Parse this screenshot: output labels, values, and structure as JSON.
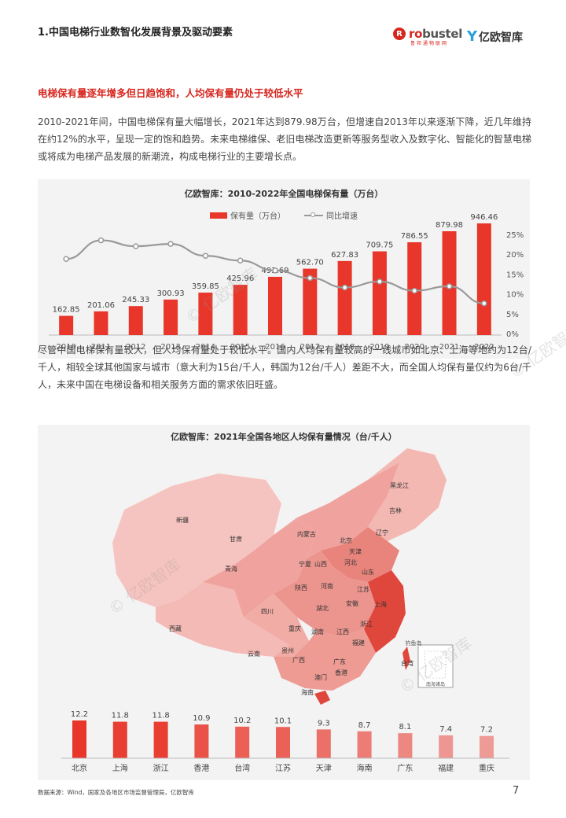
{
  "header": {
    "title": "1.中国电梯行业数智化发展背景及驱动要素",
    "robustel_mark": "R",
    "robustel_pre": "ro",
    "robustel_rest": "bustel",
    "robustel_sub": "鲁邦通物联网",
    "yiou_mark": "Y",
    "yiou_name": "亿欧智库"
  },
  "section_heading": "电梯保有量逐年增多但日趋饱和，人均保有量仍处于较低水平",
  "paragraph1": "2010-2021年间，中国电梯保有量大幅增长，2021年达到879.98万台，但增速自2013年以来逐渐下降，近几年维持在约12%的水平，呈现一定的饱和趋势。未来电梯维保、老旧电梯改造更新等服务型收入及数字化、智能化的智慧电梯或将成为电梯产品发展的新潮流，构成电梯行业的主要增长点。",
  "paragraph2": "尽管中国电梯保有量较大，但人均保有量处于较低水平。国内人均保有量较高的一线城市如北京、上海等地约为12台/千人，相较全球其他国家与城市（意大利为15台/千人，韩国为12台/千人）差距不大，而全国人均保有量仅约为6台/千人，未来中国在电梯设备和相关服务方面的需求依旧旺盛。",
  "watermark": "© 亿欧智库",
  "colors": {
    "accent": "#d7261e",
    "bar": "#e8362a",
    "line": "#999999"
  },
  "chart_data": [
    {
      "type": "bar",
      "title": "亿欧智库：2010-2022年全国电梯保有量（万台）",
      "categories": [
        "2010",
        "2011",
        "2012",
        "2013",
        "2014",
        "2015",
        "2016",
        "2017",
        "2018",
        "2019",
        "2020",
        "2021",
        "2022"
      ],
      "series": [
        {
          "name": "保有量（万台）",
          "type": "bar",
          "values": [
            162.85,
            201.06,
            245.33,
            300.93,
            359.85,
            425.96,
            493.69,
            562.7,
            627.83,
            709.75,
            786.55,
            879.98,
            946.46
          ]
        },
        {
          "name": "同比增速",
          "type": "line",
          "axis": "right",
          "values": [
            18.8,
            23.5,
            22.0,
            22.6,
            19.6,
            18.4,
            15.9,
            14.0,
            11.6,
            13.1,
            10.8,
            11.9,
            7.6
          ]
        }
      ],
      "right_axis_ticks": [
        "25%",
        "20%",
        "15%",
        "10%",
        "5%",
        "0%"
      ],
      "right_ylim": [
        0,
        25
      ],
      "legend": "top",
      "value_labels": [
        "162.85",
        "201.06",
        "245.33",
        "300.93",
        "359.85",
        "425.96",
        "493.69",
        "562.70",
        "627.83",
        "709.75",
        "786.55",
        "879.98",
        "946.46"
      ]
    },
    {
      "type": "bar",
      "title": "亿欧智库：2021年全国各地区人均保有量情况（台/千人）",
      "categories": [
        "北京",
        "上海",
        "浙江",
        "香港",
        "台湾",
        "江苏",
        "天津",
        "海南",
        "广东",
        "福建",
        "重庆"
      ],
      "values": [
        12.2,
        11.8,
        11.8,
        10.9,
        10.2,
        10.1,
        9.3,
        8.7,
        8.1,
        7.4,
        7.2
      ],
      "value_labels": [
        "12.2",
        "11.8",
        "11.8",
        "10.9",
        "10.2",
        "10.1",
        "9.3",
        "8.7",
        "8.1",
        "7.4",
        "7.2"
      ]
    }
  ],
  "map": {
    "region_labels": [
      "新疆",
      "西藏",
      "青海",
      "甘肃",
      "内蒙古",
      "黑龙江",
      "吉林",
      "辽宁",
      "北京",
      "天津",
      "河北",
      "山西",
      "山东",
      "宁夏",
      "陕西",
      "河南",
      "江苏",
      "上海",
      "安徽",
      "湖北",
      "浙江",
      "四川",
      "重庆",
      "湖南",
      "江西",
      "福建",
      "贵州",
      "云南",
      "广西",
      "广东",
      "台湾",
      "香港",
      "澳门",
      "海南"
    ],
    "diaoyu": "钓鱼岛",
    "nanhai": "南海诸岛"
  },
  "footer": {
    "source": "数据来源：Wind，国家及各地区市场监督管理局，亿欧智库",
    "page": "7"
  }
}
